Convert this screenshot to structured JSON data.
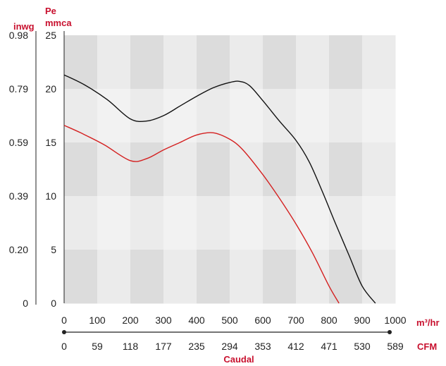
{
  "chart_data": {
    "type": "line",
    "xlabel": "Caudal",
    "x_unit": "m³/hr",
    "x_unit_secondary": "CFM",
    "y_unit_left": "inwg",
    "y_unit_right_line1": "Pe",
    "y_unit_right_line2": "mmca",
    "xlim": [
      0,
      1000
    ],
    "ylim": [
      0,
      25
    ],
    "x_ticks": [
      "0",
      "100",
      "200",
      "300",
      "400",
      "500",
      "600",
      "700",
      "800",
      "900",
      "1000"
    ],
    "x_ticks_secondary": [
      "0",
      "59",
      "118",
      "177",
      "235",
      "294",
      "353",
      "412",
      "471",
      "530",
      "589"
    ],
    "y_ticks_mmca": [
      "0",
      "5",
      "10",
      "15",
      "20",
      "25"
    ],
    "y_ticks_inwg": [
      "0",
      "0.20",
      "0.39",
      "0.59",
      "0.79",
      "0.98"
    ],
    "series": [
      {
        "color": "#111111",
        "x": [
          0,
          60,
          130,
          200,
          250,
          300,
          350,
          400,
          450,
          500,
          530,
          560,
          600,
          650,
          700,
          740,
          780,
          820,
          860,
          900,
          940
        ],
        "y": [
          21.3,
          20.4,
          19.0,
          17.2,
          17.0,
          17.5,
          18.4,
          19.3,
          20.1,
          20.6,
          20.7,
          20.3,
          18.9,
          17.0,
          15.2,
          13.2,
          10.4,
          7.4,
          4.5,
          1.6,
          0
        ]
      },
      {
        "color": "#d42020",
        "x": [
          0,
          50,
          120,
          200,
          250,
          300,
          350,
          400,
          450,
          500,
          540,
          600,
          650,
          700,
          750,
          800,
          830
        ],
        "y": [
          16.6,
          15.9,
          14.8,
          13.3,
          13.5,
          14.3,
          15.0,
          15.7,
          15.9,
          15.3,
          14.3,
          12.0,
          9.8,
          7.4,
          4.7,
          1.6,
          0
        ]
      }
    ],
    "band_colors": [
      "#dcdcdc",
      "#ebebeb",
      "#f2f2f2"
    ],
    "axis_color": "#c8102e"
  }
}
